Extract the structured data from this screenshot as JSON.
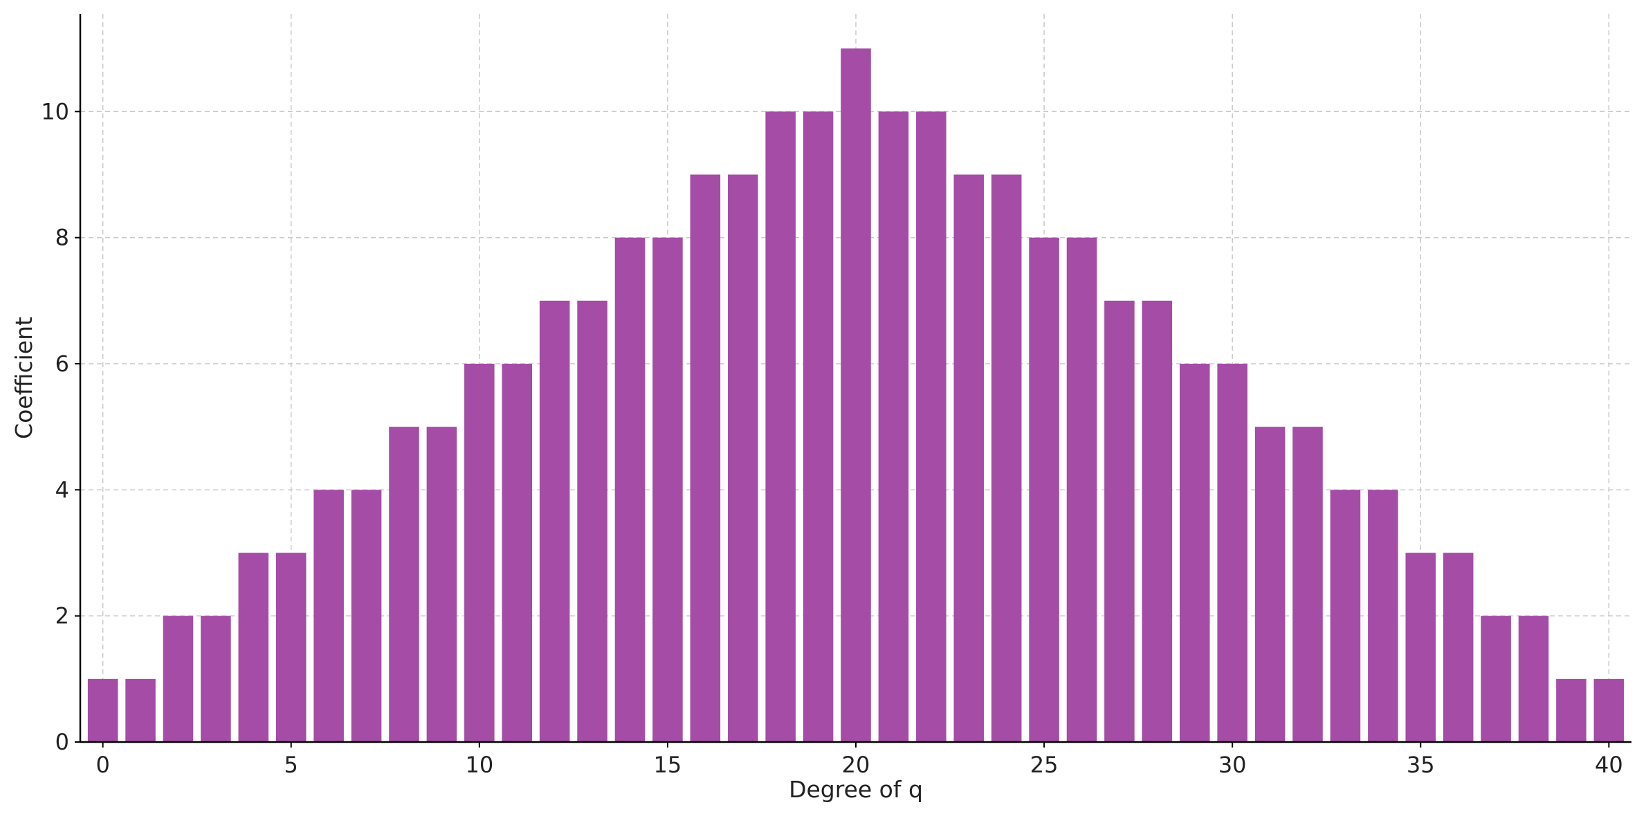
{
  "chart_data": {
    "type": "bar",
    "x": [
      0,
      1,
      2,
      3,
      4,
      5,
      6,
      7,
      8,
      9,
      10,
      11,
      12,
      13,
      14,
      15,
      16,
      17,
      18,
      19,
      20,
      21,
      22,
      23,
      24,
      25,
      26,
      27,
      28,
      29,
      30,
      31,
      32,
      33,
      34,
      35,
      36,
      37,
      38,
      39,
      40
    ],
    "values": [
      1,
      1,
      2,
      2,
      3,
      3,
      4,
      4,
      5,
      5,
      6,
      6,
      7,
      7,
      8,
      8,
      9,
      9,
      10,
      10,
      11,
      10,
      10,
      9,
      9,
      8,
      8,
      7,
      7,
      6,
      6,
      5,
      5,
      4,
      4,
      3,
      3,
      2,
      2,
      1,
      1
    ],
    "title": "",
    "xlabel": "Degree of q",
    "ylabel": "Coefficient",
    "xlim": [
      -0.6,
      40.6
    ],
    "ylim": [
      0,
      11.55
    ],
    "xticks": [
      0,
      5,
      10,
      15,
      20,
      25,
      30,
      35,
      40
    ],
    "yticks": [
      0,
      2,
      4,
      6,
      8,
      10
    ],
    "bar_color": "#a44ca6",
    "grid": true,
    "legend": "none"
  }
}
